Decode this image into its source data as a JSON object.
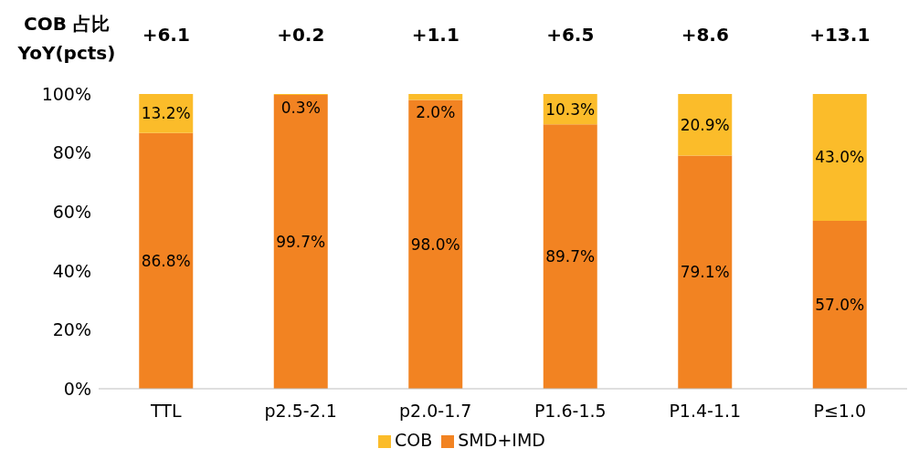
{
  "chart_data": {
    "type": "bar",
    "stacked": true,
    "categories": [
      "TTL",
      "p2.5-2.1",
      "p2.0-1.7",
      "P1.6-1.5",
      "P1.4-1.1",
      "P≤1.0"
    ],
    "series": [
      {
        "name": "SMD+IMD",
        "color": "#f28322",
        "values": [
          86.8,
          99.7,
          98.0,
          89.7,
          79.1,
          57.0
        ],
        "value_labels": [
          "86.8%",
          "99.7%",
          "98.0%",
          "89.7%",
          "79.1%",
          "57.0%"
        ]
      },
      {
        "name": "COB",
        "color": "#fbbc2a",
        "values": [
          13.2,
          0.3,
          2.0,
          10.3,
          20.9,
          43.0
        ],
        "value_labels": [
          "13.2%",
          "0.3%",
          "2.0%",
          "10.3%",
          "20.9%",
          "43.0%"
        ]
      }
    ],
    "ylim": [
      0,
      100
    ],
    "yticks": [
      {
        "value": 0,
        "label": "0%"
      },
      {
        "value": 20,
        "label": "20%"
      },
      {
        "value": 40,
        "label": "40%"
      },
      {
        "value": 60,
        "label": "60%"
      },
      {
        "value": 80,
        "label": "80%"
      },
      {
        "value": 100,
        "label": "100%"
      }
    ],
    "legend": "bottom",
    "annotations": [
      "COB 占比\nYoY(pcts)",
      "+6.1",
      "+0.2",
      "+1.1",
      "+6.5",
      "+8.6",
      "+13.1"
    ]
  }
}
